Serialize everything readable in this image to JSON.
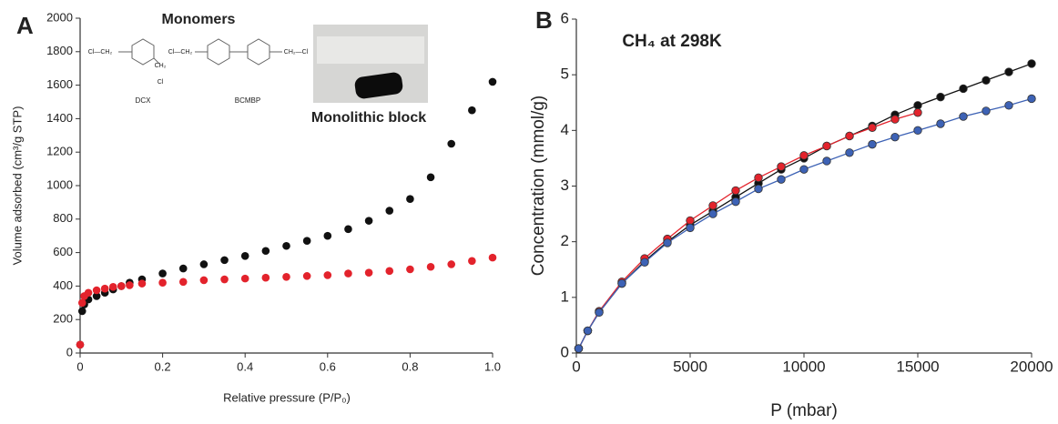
{
  "chart_data": [
    {
      "type": "scatter",
      "panel_label": "A",
      "x_label": "Relative pressure (P/P₀)",
      "y_label": "Volume adsorbed (cm³/g STP)",
      "annotations": [
        "Monomers",
        "Monolithic block",
        "DCX",
        "BCMBP",
        "Cl—CH₂",
        "CH₂",
        "Cl",
        "Cl—CH₂",
        "CH₂—Cl"
      ],
      "x": [
        0,
        0.005,
        0.01,
        0.02,
        0.04,
        0.06,
        0.08,
        0.1,
        0.12,
        0.15,
        0.2,
        0.25,
        0.3,
        0.35,
        0.4,
        0.45,
        0.5,
        0.55,
        0.6,
        0.65,
        0.7,
        0.75,
        0.8,
        0.85,
        0.9,
        0.95,
        1.0
      ],
      "series": [
        {
          "color": "#111111",
          "values": [
            50,
            250,
            290,
            320,
            340,
            360,
            380,
            400,
            420,
            440,
            475,
            505,
            530,
            555,
            580,
            610,
            640,
            670,
            700,
            740,
            790,
            850,
            920,
            1050,
            1250,
            1450,
            1620
          ]
        },
        {
          "color": "#e3232c",
          "values": [
            50,
            300,
            340,
            360,
            375,
            385,
            395,
            400,
            405,
            415,
            420,
            425,
            435,
            440,
            445,
            450,
            455,
            460,
            465,
            475,
            480,
            490,
            500,
            515,
            530,
            550,
            570
          ]
        }
      ],
      "xlim": [
        0,
        1
      ],
      "xticks": [
        0,
        0.2,
        0.4,
        0.6,
        0.8,
        {
          "value": 1,
          "label": "1.0"
        }
      ],
      "ylim": [
        0,
        2000
      ],
      "yticks": [
        0,
        200,
        400,
        600,
        800,
        1000,
        1200,
        1400,
        1600,
        1800,
        2000
      ]
    },
    {
      "type": "line",
      "panel_label": "B",
      "title": "CH₄ at 298K",
      "x_label": "P (mbar)",
      "y_label": "Concentration (mmol/g)",
      "x": [
        100,
        500,
        1000,
        2000,
        3000,
        4000,
        5000,
        6000,
        7000,
        8000,
        9000,
        10000,
        11000,
        12000,
        13000,
        14000,
        15000,
        16000,
        17000,
        18000,
        19000,
        20000
      ],
      "series": [
        {
          "color": "#111111",
          "values": [
            0.08,
            0.4,
            0.73,
            1.25,
            1.65,
            2.0,
            2.3,
            2.55,
            2.8,
            3.05,
            3.3,
            3.5,
            3.72,
            3.9,
            4.08,
            4.28,
            4.45,
            4.6,
            4.75,
            4.9,
            5.05,
            5.2
          ]
        },
        {
          "color": "#e3232c",
          "values": [
            0.08,
            0.4,
            0.75,
            1.28,
            1.7,
            2.05,
            2.38,
            2.65,
            2.92,
            3.15,
            3.35,
            3.55,
            3.72,
            3.9,
            4.05,
            4.2,
            4.32,
            null,
            null,
            null,
            null,
            null
          ]
        },
        {
          "color": "#3d62b5",
          "values": [
            0.08,
            0.4,
            0.73,
            1.25,
            1.63,
            1.98,
            2.25,
            2.5,
            2.72,
            2.95,
            3.12,
            3.3,
            3.45,
            3.6,
            3.75,
            3.88,
            4.0,
            4.12,
            4.25,
            4.35,
            4.45,
            4.57
          ]
        }
      ],
      "xlim": [
        0,
        20000
      ],
      "xticks": [
        0,
        5000,
        10000,
        15000,
        20000
      ],
      "ylim": [
        0,
        6
      ],
      "yticks": [
        0,
        1,
        2,
        3,
        4,
        5,
        6
      ]
    }
  ]
}
